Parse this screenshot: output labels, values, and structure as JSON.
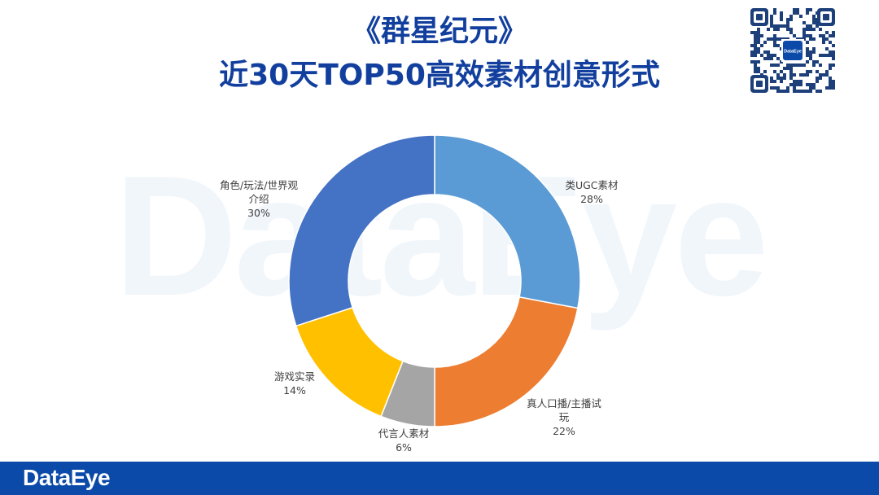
{
  "title": {
    "line1": "《群星纪元》",
    "line2": "近30天TOP50高效素材创意形式"
  },
  "brand": {
    "watermark": "DataEye",
    "footer_logo": "DataEye",
    "qr_center_label": "DataEye"
  },
  "colors": {
    "title": "#123f9e",
    "footer": "#0b4aa8"
  },
  "chart_data": {
    "type": "pie",
    "variant": "donut",
    "slices": [
      {
        "label": "类UGC素材",
        "value": 28,
        "percent_label": "28%",
        "color": "#5b9bd5",
        "label_lines": [
          "类UGC素材"
        ]
      },
      {
        "label": "真人口播/主播试玩",
        "value": 22,
        "percent_label": "22%",
        "color": "#ed7d31",
        "label_lines": [
          "真人口播/主播试",
          "玩"
        ]
      },
      {
        "label": "代言人素材",
        "value": 6,
        "percent_label": "6%",
        "color": "#a5a5a5",
        "label_lines": [
          "代言人素材"
        ]
      },
      {
        "label": "游戏实录",
        "value": 14,
        "percent_label": "14%",
        "color": "#ffc000",
        "label_lines": [
          "游戏实录"
        ]
      },
      {
        "label": "角色/玩法/世界观介绍",
        "value": 30,
        "percent_label": "30%",
        "color": "#4472c4",
        "label_lines": [
          "角色/玩法/世界观",
          "介绍"
        ]
      }
    ]
  }
}
